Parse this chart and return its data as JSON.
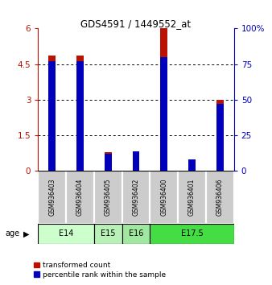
{
  "title": "GDS4591 / 1449552_at",
  "samples": [
    "GSM936403",
    "GSM936404",
    "GSM936405",
    "GSM936402",
    "GSM936400",
    "GSM936401",
    "GSM936406"
  ],
  "transformed_count": [
    4.85,
    4.85,
    0.78,
    0.83,
    6.0,
    0.2,
    3.0
  ],
  "percentile_rank": [
    77,
    77,
    12,
    14,
    80,
    8,
    47
  ],
  "age_groups": [
    {
      "label": "E14",
      "indices": [
        0,
        1
      ],
      "color": "#ccffcc"
    },
    {
      "label": "E15",
      "indices": [
        2
      ],
      "color": "#b8f0b8"
    },
    {
      "label": "E16",
      "indices": [
        3
      ],
      "color": "#a0e8a0"
    },
    {
      "label": "E17.5",
      "indices": [
        4,
        5,
        6
      ],
      "color": "#44dd44"
    }
  ],
  "ylim_left": [
    0,
    6
  ],
  "ylim_right": [
    0,
    100
  ],
  "yticks_left": [
    0,
    1.5,
    3,
    4.5,
    6
  ],
  "yticks_right": [
    0,
    25,
    50,
    75,
    100
  ],
  "bar_width": 0.25,
  "blue_bar_width": 0.25,
  "red_color": "#bb1100",
  "blue_color": "#0000bb",
  "sample_bg": "#cccccc",
  "legend_labels": [
    "transformed count",
    "percentile rank within the sample"
  ]
}
